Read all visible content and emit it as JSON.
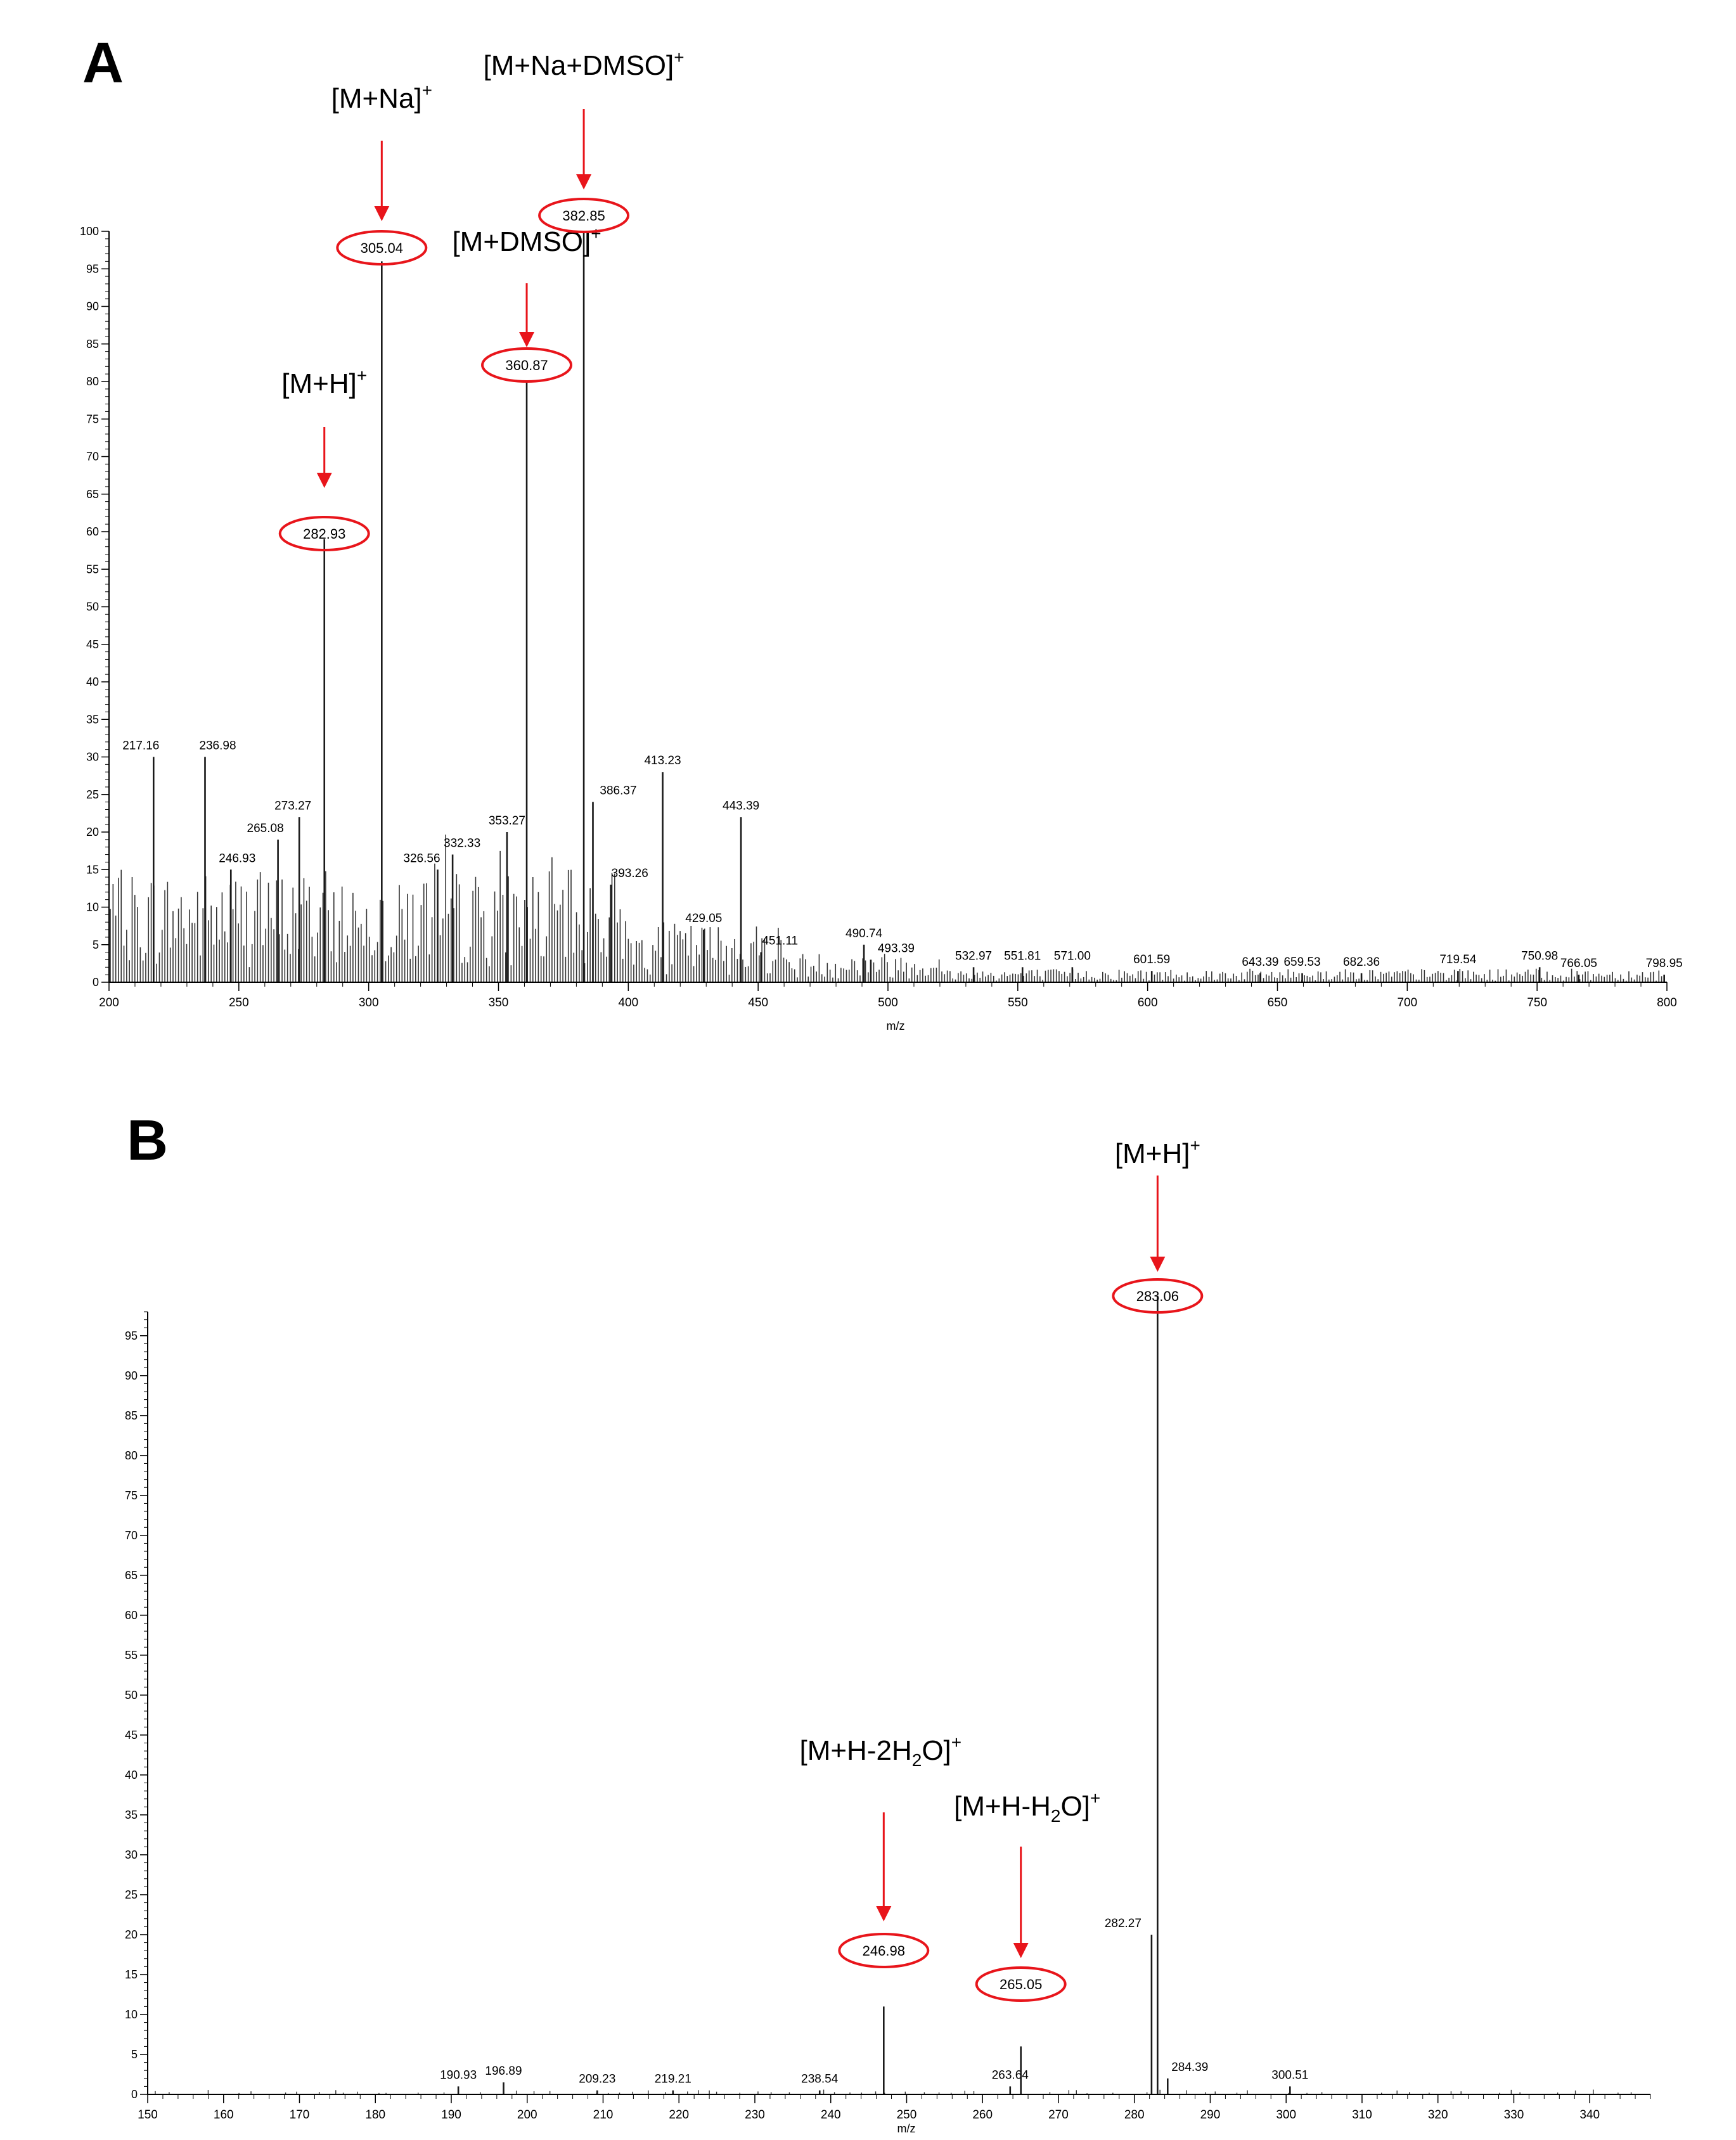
{
  "colors": {
    "axis": "#000000",
    "peak": "#1a1a1a",
    "accent": "#e8151b",
    "tick_marker": "#2ba24c"
  },
  "panels": [
    {
      "panel_label": "A",
      "xlabel": "m/z",
      "xlim": [
        200,
        800
      ],
      "ylim": [
        0,
        100
      ],
      "x_ticks": [
        200,
        250,
        300,
        350,
        400,
        450,
        500,
        550,
        600,
        650,
        700,
        750,
        800
      ],
      "y_ticks": [
        0,
        5,
        10,
        15,
        20,
        25,
        30,
        35,
        40,
        45,
        50,
        55,
        60,
        65,
        70,
        75,
        80,
        85,
        90,
        95,
        100
      ],
      "labeled_peaks": [
        {
          "mz": 217.16,
          "intensity": 30,
          "label": "217.16"
        },
        {
          "mz": 236.98,
          "intensity": 30,
          "label": "236.98"
        },
        {
          "mz": 246.93,
          "intensity": 15,
          "label": "246.93"
        },
        {
          "mz": 265.08,
          "intensity": 19,
          "label": "265.08"
        },
        {
          "mz": 273.27,
          "intensity": 22,
          "label": "273.27"
        },
        {
          "mz": 282.93,
          "intensity": 59,
          "label": "282.93"
        },
        {
          "mz": 305.04,
          "intensity": 96,
          "label": "305.04"
        },
        {
          "mz": 326.56,
          "intensity": 15,
          "label": "326.56"
        },
        {
          "mz": 332.33,
          "intensity": 17,
          "label": "332.33"
        },
        {
          "mz": 353.27,
          "intensity": 20,
          "label": "353.27"
        },
        {
          "mz": 360.87,
          "intensity": 80,
          "label": "360.87"
        },
        {
          "mz": 382.85,
          "intensity": 100,
          "label": "382.85"
        },
        {
          "mz": 386.37,
          "intensity": 24,
          "label": "386.37"
        },
        {
          "mz": 393.26,
          "intensity": 13,
          "label": "393.26"
        },
        {
          "mz": 413.23,
          "intensity": 28,
          "label": "413.23"
        },
        {
          "mz": 429.05,
          "intensity": 7,
          "label": "429.05"
        },
        {
          "mz": 443.39,
          "intensity": 22,
          "label": "443.39"
        },
        {
          "mz": 451.11,
          "intensity": 4,
          "label": "451.11"
        },
        {
          "mz": 490.74,
          "intensity": 5,
          "label": "490.74"
        },
        {
          "mz": 493.39,
          "intensity": 3,
          "label": "493.39"
        },
        {
          "mz": 532.97,
          "intensity": 2,
          "label": "532.97"
        },
        {
          "mz": 551.81,
          "intensity": 2,
          "label": "551.81"
        },
        {
          "mz": 571.0,
          "intensity": 2,
          "label": "571.00"
        },
        {
          "mz": 601.59,
          "intensity": 1.5,
          "label": "601.59"
        },
        {
          "mz": 643.39,
          "intensity": 1.2,
          "label": "643.39"
        },
        {
          "mz": 659.53,
          "intensity": 1.2,
          "label": "659.53"
        },
        {
          "mz": 682.36,
          "intensity": 1.2,
          "label": "682.36"
        },
        {
          "mz": 719.54,
          "intensity": 1.5,
          "label": "719.54"
        },
        {
          "mz": 750.98,
          "intensity": 2,
          "label": "750.98"
        },
        {
          "mz": 766.05,
          "intensity": 1,
          "label": "766.05"
        },
        {
          "mz": 798.95,
          "intensity": 1,
          "label": "798.95"
        }
      ],
      "highlighted": [
        {
          "mz": 282.93,
          "label": "282.93",
          "ion_base": "[M+H]",
          "ion_sup": "+"
        },
        {
          "mz": 305.04,
          "label": "305.04",
          "ion_base": "[M+Na]",
          "ion_sup": "+"
        },
        {
          "mz": 360.87,
          "label": "360.87",
          "ion_base": "[M+DMSO]",
          "ion_sup": "+"
        },
        {
          "mz": 382.85,
          "label": "382.85",
          "ion_base": "[M+Na+DMSO]",
          "ion_sup": "+"
        }
      ]
    },
    {
      "panel_label": "B",
      "xlabel": "m/z",
      "xlim": [
        150,
        348
      ],
      "ylim": [
        0,
        98
      ],
      "x_ticks": [
        150,
        160,
        170,
        180,
        190,
        200,
        210,
        220,
        230,
        240,
        250,
        260,
        270,
        280,
        290,
        300,
        310,
        320,
        330,
        340
      ],
      "y_ticks": [
        0,
        5,
        10,
        15,
        20,
        25,
        30,
        35,
        40,
        45,
        50,
        55,
        60,
        65,
        70,
        75,
        80,
        85,
        90,
        95
      ],
      "labeled_peaks": [
        {
          "mz": 190.93,
          "intensity": 1,
          "label": "190.93"
        },
        {
          "mz": 196.89,
          "intensity": 1.5,
          "label": "196.89"
        },
        {
          "mz": 209.23,
          "intensity": 0.5,
          "label": "209.23"
        },
        {
          "mz": 219.21,
          "intensity": 0.5,
          "label": "219.21"
        },
        {
          "mz": 238.54,
          "intensity": 0.5,
          "label": "238.54"
        },
        {
          "mz": 246.98,
          "intensity": 11,
          "label": "246.98"
        },
        {
          "mz": 263.64,
          "intensity": 1,
          "label": "263.64"
        },
        {
          "mz": 265.05,
          "intensity": 6,
          "label": "265.05"
        },
        {
          "mz": 282.27,
          "intensity": 20,
          "label": "282.27"
        },
        {
          "mz": 283.06,
          "intensity": 100,
          "label": "283.06"
        },
        {
          "mz": 284.39,
          "intensity": 2,
          "label": "284.39"
        },
        {
          "mz": 300.51,
          "intensity": 1,
          "label": "300.51"
        }
      ],
      "highlighted": [
        {
          "mz": 246.98,
          "label": "246.98",
          "ion_base": "[M+H-2H",
          "ion_sub": "2",
          "ion_tail": "O]",
          "ion_sup": "+"
        },
        {
          "mz": 265.05,
          "label": "265.05",
          "ion_base": "[M+H-H",
          "ion_sub": "2",
          "ion_tail": "O]",
          "ion_sup": "+"
        },
        {
          "mz": 283.06,
          "label": "283.06",
          "ion_base": "[M+H]",
          "ion_sup": "+"
        }
      ]
    }
  ],
  "chart_data": [
    {
      "type": "bar",
      "title": "",
      "panel": "A",
      "xlabel": "m/z",
      "ylabel": "",
      "xlim": [
        200,
        800
      ],
      "ylim": [
        0,
        100
      ],
      "x": [
        217.16,
        236.98,
        246.93,
        265.08,
        273.27,
        282.93,
        305.04,
        326.56,
        332.33,
        353.27,
        360.87,
        382.85,
        386.37,
        393.26,
        413.23,
        429.05,
        443.39,
        451.11,
        490.74,
        493.39,
        532.97,
        551.81,
        571.0,
        601.59,
        643.39,
        659.53,
        682.36,
        719.54,
        750.98,
        766.05,
        798.95
      ],
      "values": [
        30,
        30,
        15,
        19,
        22,
        59,
        96,
        15,
        17,
        20,
        80,
        100,
        24,
        13,
        28,
        7,
        22,
        4,
        5,
        3,
        2,
        2,
        2,
        1.5,
        1.2,
        1.2,
        1.2,
        1.5,
        2,
        1,
        1
      ]
    },
    {
      "type": "bar",
      "title": "",
      "panel": "B",
      "xlabel": "m/z",
      "ylabel": "",
      "xlim": [
        150,
        348
      ],
      "ylim": [
        0,
        98
      ],
      "x": [
        190.93,
        196.89,
        209.23,
        219.21,
        238.54,
        246.98,
        263.64,
        265.05,
        282.27,
        283.06,
        284.39,
        300.51
      ],
      "values": [
        1,
        1.5,
        0.5,
        0.5,
        0.5,
        11,
        1,
        6,
        20,
        100,
        2,
        1
      ]
    }
  ]
}
